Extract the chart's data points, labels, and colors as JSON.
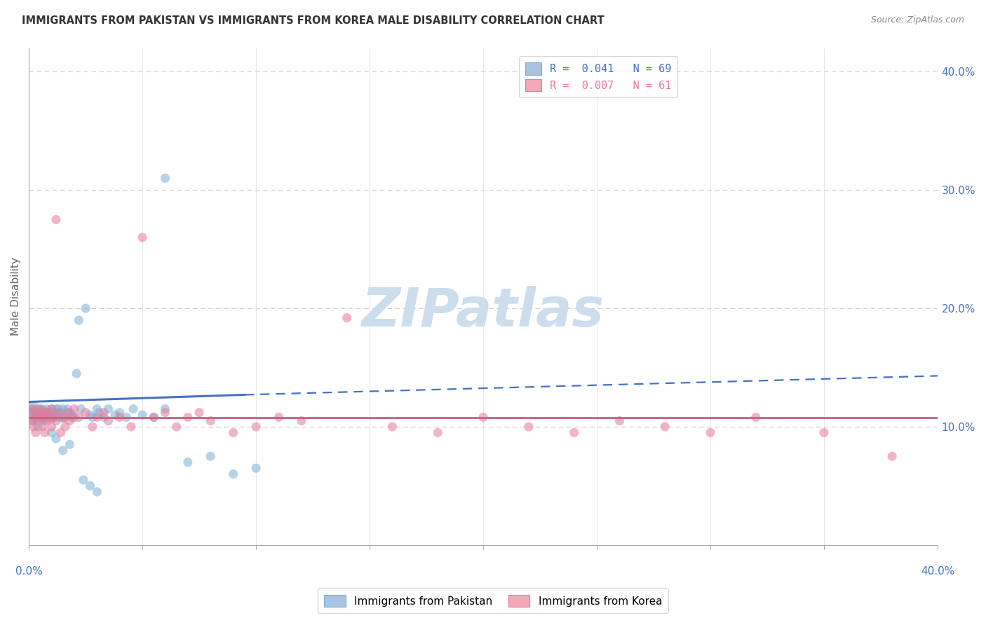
{
  "title": "IMMIGRANTS FROM PAKISTAN VS IMMIGRANTS FROM KOREA MALE DISABILITY CORRELATION CHART",
  "source": "Source: ZipAtlas.com",
  "ylabel": "Male Disability",
  "right_yticks": [
    0.1,
    0.2,
    0.3,
    0.4
  ],
  "right_yticklabels": [
    "10.0%",
    "20.0%",
    "30.0%",
    "40.0%"
  ],
  "xlim": [
    0.0,
    0.4
  ],
  "ylim": [
    0.0,
    0.42
  ],
  "pakistan_scatter": {
    "color": "#7bafd4",
    "alpha": 0.55,
    "size": 90,
    "x": [
      0.001,
      0.001,
      0.002,
      0.002,
      0.002,
      0.003,
      0.003,
      0.003,
      0.004,
      0.004,
      0.004,
      0.005,
      0.005,
      0.005,
      0.006,
      0.006,
      0.006,
      0.007,
      0.007,
      0.007,
      0.008,
      0.008,
      0.009,
      0.009,
      0.01,
      0.01,
      0.011,
      0.011,
      0.012,
      0.012,
      0.013,
      0.013,
      0.014,
      0.015,
      0.015,
      0.016,
      0.017,
      0.018,
      0.019,
      0.02,
      0.022,
      0.023,
      0.025,
      0.027,
      0.028,
      0.03,
      0.031,
      0.033,
      0.035,
      0.038,
      0.04,
      0.043,
      0.046,
      0.05,
      0.055,
      0.06,
      0.07,
      0.08,
      0.09,
      0.1,
      0.01,
      0.012,
      0.015,
      0.018,
      0.021,
      0.024,
      0.027,
      0.03,
      0.06
    ],
    "y": [
      0.115,
      0.108,
      0.112,
      0.118,
      0.105,
      0.11,
      0.107,
      0.113,
      0.109,
      0.115,
      0.1,
      0.108,
      0.114,
      0.11,
      0.112,
      0.107,
      0.115,
      0.108,
      0.105,
      0.113,
      0.108,
      0.115,
      0.11,
      0.112,
      0.107,
      0.115,
      0.108,
      0.112,
      0.115,
      0.11,
      0.108,
      0.115,
      0.112,
      0.107,
      0.115,
      0.108,
      0.115,
      0.112,
      0.11,
      0.108,
      0.19,
      0.115,
      0.2,
      0.11,
      0.108,
      0.115,
      0.112,
      0.108,
      0.115,
      0.11,
      0.112,
      0.108,
      0.115,
      0.11,
      0.108,
      0.115,
      0.07,
      0.075,
      0.06,
      0.065,
      0.095,
      0.09,
      0.08,
      0.085,
      0.145,
      0.055,
      0.05,
      0.045,
      0.31
    ]
  },
  "korea_scatter": {
    "color": "#e8799a",
    "alpha": 0.55,
    "size": 90,
    "x": [
      0.001,
      0.001,
      0.002,
      0.002,
      0.003,
      0.003,
      0.004,
      0.004,
      0.005,
      0.005,
      0.006,
      0.006,
      0.007,
      0.007,
      0.008,
      0.008,
      0.009,
      0.01,
      0.01,
      0.011,
      0.012,
      0.012,
      0.013,
      0.014,
      0.015,
      0.016,
      0.017,
      0.018,
      0.019,
      0.02,
      0.022,
      0.025,
      0.028,
      0.03,
      0.033,
      0.035,
      0.04,
      0.045,
      0.05,
      0.055,
      0.06,
      0.065,
      0.07,
      0.075,
      0.08,
      0.09,
      0.1,
      0.11,
      0.12,
      0.14,
      0.16,
      0.18,
      0.2,
      0.22,
      0.24,
      0.26,
      0.28,
      0.3,
      0.32,
      0.35,
      0.38
    ],
    "y": [
      0.105,
      0.112,
      0.115,
      0.1,
      0.108,
      0.095,
      0.112,
      0.105,
      0.108,
      0.115,
      0.1,
      0.108,
      0.112,
      0.095,
      0.105,
      0.112,
      0.108,
      0.1,
      0.115,
      0.108,
      0.275,
      0.105,
      0.112,
      0.095,
      0.108,
      0.1,
      0.112,
      0.105,
      0.108,
      0.115,
      0.108,
      0.112,
      0.1,
      0.108,
      0.112,
      0.105,
      0.108,
      0.1,
      0.26,
      0.108,
      0.112,
      0.1,
      0.108,
      0.112,
      0.105,
      0.095,
      0.1,
      0.108,
      0.105,
      0.192,
      0.1,
      0.095,
      0.108,
      0.1,
      0.095,
      0.105,
      0.1,
      0.095,
      0.108,
      0.095,
      0.075
    ]
  },
  "pakistan_trend_solid": {
    "x": [
      0.0,
      0.095
    ],
    "y": [
      0.121,
      0.127
    ],
    "color": "#4472c4",
    "linewidth": 2.2
  },
  "pakistan_trend_dashed": {
    "x": [
      0.095,
      0.4
    ],
    "y": [
      0.127,
      0.143
    ],
    "color": "#4472c4",
    "linewidth": 1.6
  },
  "korea_trend": {
    "x": [
      0.0,
      0.4
    ],
    "y": [
      0.108,
      0.108
    ],
    "color": "#c9607a",
    "linewidth": 2.0
  },
  "watermark_text": "ZIPatlas",
  "watermark_color": "#ccdded",
  "watermark_fontsize": 55,
  "background_color": "#ffffff",
  "grid_color": "#cccccc",
  "title_color": "#333333",
  "axis_label_color": "#666666",
  "tick_color": "#4472c4",
  "legend_pak_color": "#a8c4e0",
  "legend_kor_color": "#f4a8b8",
  "legend_pak_edge": "#7bafd4",
  "legend_kor_edge": "#e8799a"
}
